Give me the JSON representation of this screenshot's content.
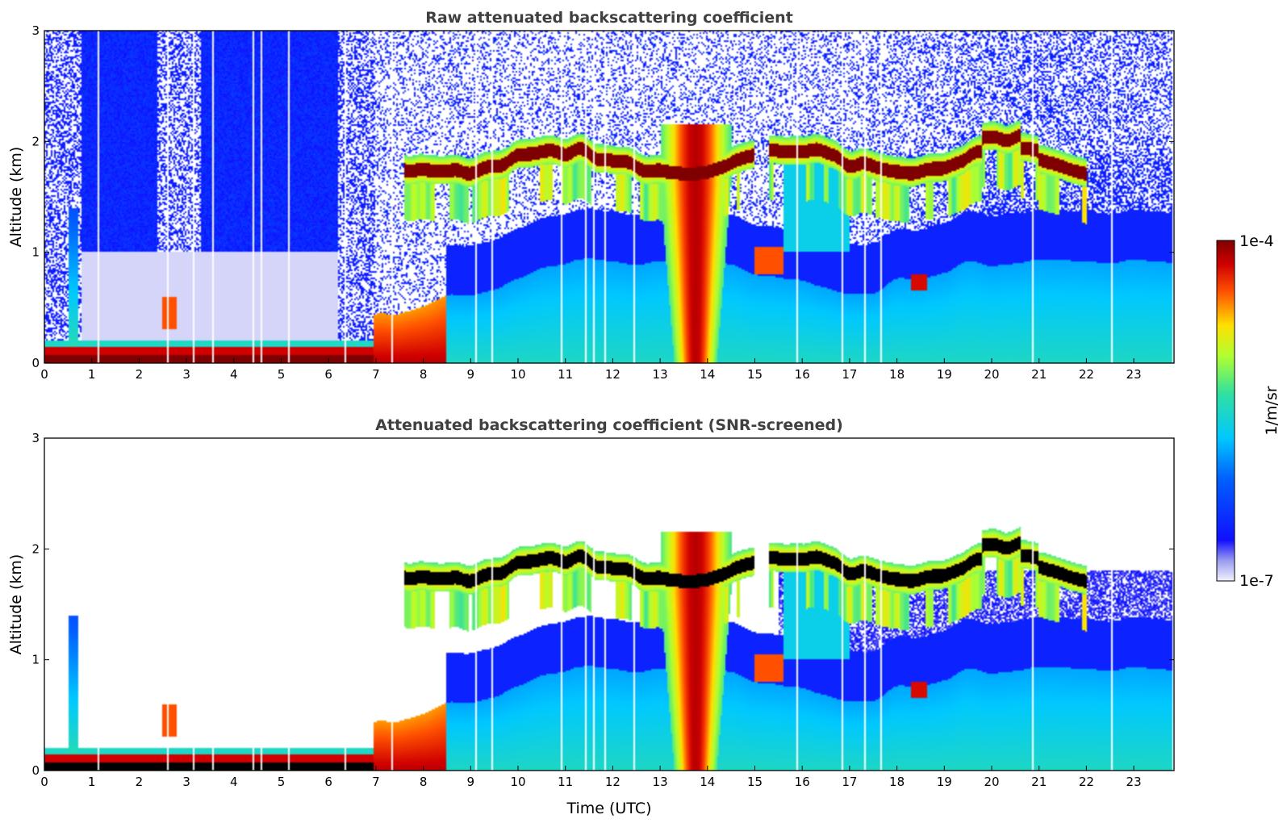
{
  "chart_data": [
    {
      "type": "heatmap",
      "title": "Raw attenuated backscattering coefficient",
      "xlabel": "",
      "ylabel": "Altitude (km)",
      "xlim": [
        0,
        23.85
      ],
      "ylim": [
        0,
        3
      ],
      "x_ticks": [
        "0",
        "1",
        "2",
        "3",
        "4",
        "5",
        "6",
        "7",
        "8",
        "9",
        "10",
        "11",
        "12",
        "13",
        "14",
        "15",
        "16",
        "17",
        "18",
        "19",
        "20",
        "21",
        "22",
        "23"
      ],
      "y_ticks": [
        "0",
        "1",
        "2",
        "3"
      ],
      "variant": "raw",
      "colorscale": "jet",
      "grid": false,
      "features": [
        {
          "name": "surface layer",
          "t": [
            0,
            6.9
          ],
          "alt": [
            0,
            0.2
          ]
        },
        {
          "name": "cloud layer",
          "t": [
            7.6,
            22.0
          ],
          "alt": [
            1.7,
            2.1
          ]
        },
        {
          "name": "deep cloud",
          "t": [
            13.0,
            14.6
          ],
          "alt": [
            0,
            2.1
          ]
        },
        {
          "name": "boundary layer aerosol",
          "t": [
            7.0,
            23.8
          ],
          "alt": [
            0,
            1.0
          ]
        }
      ]
    },
    {
      "type": "heatmap",
      "title": "Attenuated backscattering coefficient (SNR-screened)",
      "xlabel": "Time (UTC)",
      "ylabel": "Altitude (km)",
      "xlim": [
        0,
        23.85
      ],
      "ylim": [
        0,
        3
      ],
      "x_ticks": [
        "0",
        "1",
        "2",
        "3",
        "4",
        "5",
        "6",
        "7",
        "8",
        "9",
        "10",
        "11",
        "12",
        "13",
        "14",
        "15",
        "16",
        "17",
        "18",
        "19",
        "20",
        "21",
        "22",
        "23"
      ],
      "y_ticks": [
        "0",
        "1",
        "2",
        "3"
      ],
      "variant": "screened",
      "colorscale": "jet",
      "grid": false
    }
  ],
  "colorbar": {
    "label": "1/m/sr",
    "max_label": "1e-4",
    "min_label": "1e-7",
    "range": [
      1e-07,
      0.0001
    ]
  },
  "colors": {
    "axis": "#000000",
    "title": "#404040",
    "saturated": "#7f0000",
    "background_noise": "#0a3cf0"
  }
}
